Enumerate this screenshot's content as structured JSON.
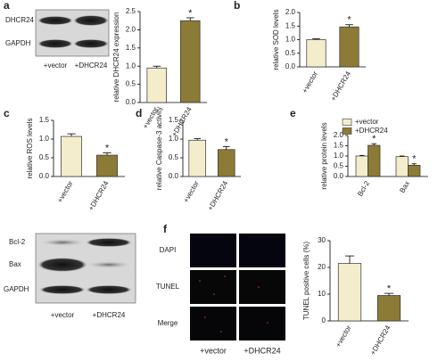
{
  "chart_data": [
    {
      "type": "bar",
      "panel": "a",
      "ylabel": "relative DHCR24 expression",
      "categories": [
        "+vector",
        "+DHCR24"
      ],
      "values": [
        0.95,
        2.25
      ],
      "errors": [
        0.05,
        0.08
      ],
      "colors": [
        "#f3edcb",
        "#8c7b36"
      ],
      "ylim": [
        0,
        2.5
      ],
      "yticks": [
        {
          "value": 0,
          "label": "0.0"
        },
        0.5,
        {
          "value": 1,
          "label": "1.0"
        },
        1.5,
        {
          "value": 2,
          "label": "2.0"
        },
        2.5
      ],
      "annotations": [
        {
          "text": "*",
          "category": "+DHCR24"
        }
      ]
    },
    {
      "type": "bar",
      "panel": "b",
      "ylabel": "relative SOD levels",
      "categories": [
        "+vector",
        "+DHCR24"
      ],
      "values": [
        1.0,
        1.47
      ],
      "errors": [
        0.03,
        0.08
      ],
      "colors": [
        "#f3edcb",
        "#8c7b36"
      ],
      "ylim": [
        0,
        2
      ],
      "yticks": [
        {
          "value": 0,
          "label": "0.0"
        },
        0.5,
        {
          "value": 1,
          "label": "1.0"
        },
        1.5,
        {
          "value": 2,
          "label": "2.0"
        }
      ],
      "annotations": [
        {
          "text": "*",
          "category": "+DHCR24"
        }
      ]
    },
    {
      "type": "bar",
      "panel": "c",
      "ylabel": "relative ROS levels",
      "categories": [
        "+vector",
        "+DHCR24"
      ],
      "values": [
        1.07,
        0.57
      ],
      "errors": [
        0.07,
        0.06
      ],
      "colors": [
        "#f3edcb",
        "#8c7b36"
      ],
      "ylim": [
        0,
        1.5
      ],
      "yticks": [
        {
          "value": 0,
          "label": "0.0"
        },
        0.5,
        {
          "value": 1,
          "label": "1.0"
        },
        1.5
      ],
      "annotations": [
        {
          "text": "*",
          "category": "+DHCR24"
        }
      ]
    },
    {
      "type": "bar",
      "panel": "d",
      "ylabel": "relative Caspase-3 activity",
      "categories": [
        "+vector",
        "+DHCR24"
      ],
      "values": [
        0.97,
        0.72
      ],
      "errors": [
        0.04,
        0.08
      ],
      "colors": [
        "#f3edcb",
        "#8c7b36"
      ],
      "ylim": [
        0,
        1.5
      ],
      "yticks": [
        {
          "value": 0,
          "label": "0.0"
        },
        0.5,
        {
          "value": 1,
          "label": "1.0"
        },
        1.5
      ],
      "annotations": [
        {
          "text": "*",
          "category": "+DHCR24"
        }
      ]
    },
    {
      "type": "grouped_bar",
      "panel": "e",
      "ylabel": "relative protein levels",
      "categories": [
        "Bcl-2",
        "Bax"
      ],
      "series": [
        {
          "name": "+vector",
          "color": "#f3edcb",
          "values": [
            1.0,
            0.97
          ],
          "errors": [
            0.03,
            0.03
          ]
        },
        {
          "name": "+DHCR24",
          "color": "#8c7b36",
          "values": [
            1.52,
            0.55
          ],
          "errors": [
            0.08,
            0.07
          ]
        }
      ],
      "ylim": [
        0,
        2
      ],
      "yticks": [
        {
          "value": 0,
          "label": "0.0"
        },
        0.5,
        {
          "value": 1,
          "label": "1.0"
        },
        1.5,
        {
          "value": 2,
          "label": "2.0"
        }
      ],
      "legend": "top-left",
      "annotations": [
        {
          "text": "*",
          "category": "Bcl-2",
          "series": "+DHCR24"
        },
        {
          "text": "*",
          "category": "Bax",
          "series": "+DHCR24"
        }
      ]
    },
    {
      "type": "bar",
      "panel": "f",
      "ylabel": "TUNEL positive cells (%)",
      "categories": [
        "+vector",
        "+DHCR24"
      ],
      "values": [
        21.5,
        9.5
      ],
      "errors": [
        2.8,
        0.8
      ],
      "colors": [
        "#f3edcb",
        "#8c7b36"
      ],
      "ylim": [
        0,
        30
      ],
      "yticks": [
        0,
        10,
        20,
        30
      ],
      "annotations": [
        {
          "text": "*",
          "category": "+DHCR24"
        }
      ]
    }
  ],
  "blots": [
    {
      "rows": [
        "DHCR24",
        "GAPDH"
      ],
      "lanes": [
        "+vector",
        "+DHCR24"
      ]
    },
    {
      "rows": [
        "Bcl-2",
        "Bax",
        "GAPDH"
      ],
      "lanes": [
        "+vector",
        "+DHCR24"
      ]
    }
  ],
  "microscopy": {
    "rows": [
      "DAPI",
      "TUNEL",
      "Merge"
    ],
    "columns": [
      "+vector",
      "+DHCR24"
    ]
  }
}
